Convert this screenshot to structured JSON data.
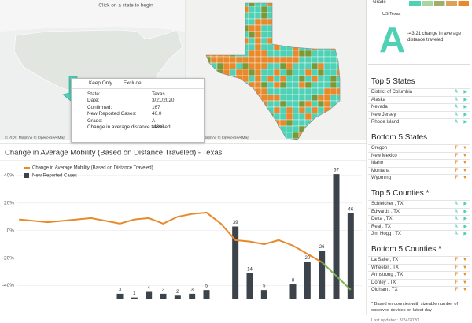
{
  "map": {
    "prompt": "Click on a state to begin",
    "attribution": "© 2020 Mapbox © OpenStreetMap"
  },
  "tooltip": {
    "actions": [
      "Keep Only",
      "Exclude"
    ],
    "rows": [
      {
        "label": "State:",
        "value": "Texas"
      },
      {
        "label": "Date:",
        "value": "3/21/2020"
      },
      {
        "label": "Confirmed:",
        "value": "167"
      },
      {
        "label": "New Reported Cases:",
        "value": "46.0"
      },
      {
        "label": "Grade:",
        "value": "A"
      },
      {
        "label": "Change in average distance travelled:",
        "value": "-43%"
      }
    ]
  },
  "panel": {
    "grade_title": "Grade",
    "region": "US Texas",
    "grade": "A",
    "grade_note": "-43.21 change in average distance traveled",
    "lists": [
      {
        "title": "Top 5 States",
        "items": [
          {
            "name": "District of Columbia",
            "grade": "A"
          },
          {
            "name": "Alaska",
            "grade": "A"
          },
          {
            "name": "Nevada",
            "grade": "A"
          },
          {
            "name": "New Jersey",
            "grade": "A"
          },
          {
            "name": "Rhode Island",
            "grade": "A"
          }
        ]
      },
      {
        "title": "Bottom 5 States",
        "items": [
          {
            "name": "Oregon",
            "grade": "F"
          },
          {
            "name": "New Mexico",
            "grade": "F"
          },
          {
            "name": "Idaho",
            "grade": "F"
          },
          {
            "name": "Montana",
            "grade": "F"
          },
          {
            "name": "Wyoming",
            "grade": "F"
          }
        ]
      },
      {
        "title": "Top 5 Counties *",
        "items": [
          {
            "name": "Schleicher , TX",
            "grade": "A"
          },
          {
            "name": "Edwards , TX",
            "grade": "A"
          },
          {
            "name": "Delta , TX",
            "grade": "A"
          },
          {
            "name": "Real , TX",
            "grade": "A"
          },
          {
            "name": "Jim Hogg , TX",
            "grade": "A"
          }
        ]
      },
      {
        "title": "Bottom 5 Counties *",
        "items": [
          {
            "name": "La Salle , TX",
            "grade": "F"
          },
          {
            "name": "Wheeler , TX",
            "grade": "F"
          },
          {
            "name": "Armstrong , TX",
            "grade": "F"
          },
          {
            "name": "Donley , TX",
            "grade": "F"
          },
          {
            "name": "Oldham , TX",
            "grade": "F"
          }
        ]
      }
    ],
    "footnote": "* Based on counties with sizeable number of observed devices on latest day",
    "updated": "Last updated: 3/24/2020"
  },
  "chart_data": {
    "type": "bar-line",
    "title": "Change in Average Mobility (Based on Distance Traveled) - Texas",
    "series": [
      {
        "name": "Change in Average Mobility (Based on Distance Traveled)",
        "type": "line",
        "color": "#e8892b",
        "values": [
          8,
          7,
          6,
          7,
          8,
          9,
          7,
          5,
          8,
          9,
          5,
          10,
          12,
          13,
          5,
          -7,
          -8,
          -10,
          -7,
          -11,
          -17,
          -23,
          null,
          null
        ]
      },
      {
        "name": null,
        "type": "line",
        "color": "#7db356",
        "values": [
          null,
          null,
          null,
          null,
          null,
          null,
          null,
          null,
          null,
          null,
          null,
          null,
          null,
          null,
          null,
          null,
          null,
          null,
          null,
          null,
          null,
          -23,
          -33,
          -43
        ]
      },
      {
        "name": "New Reported Cases",
        "type": "bar",
        "axis": "y2",
        "color": "#3d434a",
        "values": [
          null,
          null,
          null,
          null,
          null,
          null,
          null,
          3,
          1,
          4,
          3,
          2,
          3,
          5,
          null,
          39,
          14,
          5,
          null,
          8,
          20,
          26,
          67,
          46
        ]
      }
    ],
    "ylim": [
      -50,
      45
    ],
    "yticks": [
      {
        "value": 40,
        "label": "40%"
      },
      {
        "value": 20,
        "label": "20%"
      },
      {
        "value": 0,
        "label": "0%"
      },
      {
        "value": -20,
        "label": "-20%"
      },
      {
        "value": -40,
        "label": "-40%"
      }
    ],
    "y2lim": [
      0,
      70
    ],
    "grid": true
  }
}
